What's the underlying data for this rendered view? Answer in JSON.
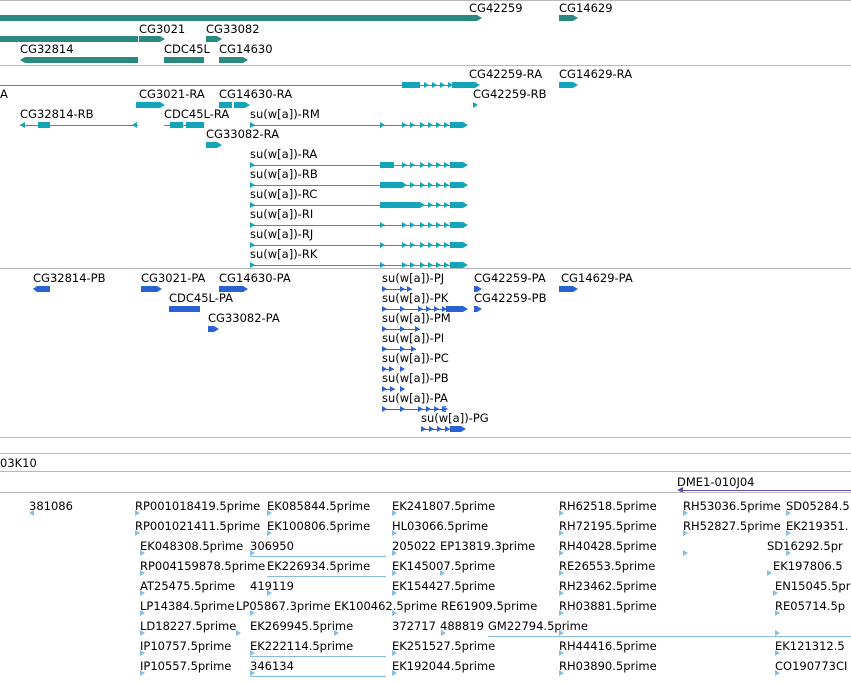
{
  "gene_track": {
    "labels": [
      "CG42259",
      "CG14629",
      "CG3021",
      "CG33082",
      "CG32814",
      "CDC45L",
      "CG14630"
    ]
  },
  "transcript_track": {
    "labels": [
      "CG42259-RA",
      "CG14629-RA",
      "A",
      "CG3021-RA",
      "CG14630-RA",
      "CG42259-RB",
      "CG32814-RB",
      "CDC45L-RA",
      "su(w[a])-RM",
      "CG33082-RA",
      "su(w[a])-RA",
      "su(w[a])-RB",
      "su(w[a])-RC",
      "su(w[a])-RI",
      "su(w[a])-RJ",
      "su(w[a])-RK"
    ]
  },
  "protein_track": {
    "labels": [
      "CG32814-PB",
      "CG3021-PA",
      "CG14630-PA",
      "su(w[a])-PJ",
      "CG42259-PA",
      "CG14629-PA",
      "CDC45L-PA",
      "su(w[a])-PK",
      "CG42259-PB",
      "CG33082-PA",
      "su(w[a])-PM",
      "su(w[a])-PI",
      "su(w[a])-PC",
      "su(w[a])-PB",
      "su(w[a])-PA",
      "su(w[a])-PG"
    ]
  },
  "clone_track": {
    "label": "03K10"
  },
  "est_track": {
    "header_label": "DME1-010J04",
    "labels": [
      "381086",
      "RP001018419.5prime",
      "EK085844.5prime",
      "EK241807.5prime",
      "RH62518.5prime",
      "RH53036.5prime",
      "SD05284.5",
      "RP001021411.5prime",
      "EK100806.5prime",
      "HL03066.5prime",
      "RH72195.5prime",
      "RH52827.5prime",
      "EK219351.",
      "EK048308.5prime",
      "306950",
      "205022",
      "EP13819.3prime",
      "RH40428.5prime",
      "SD16292.5pr",
      "RP004159878.5prime",
      "EK226934.5prime",
      "EK145007.5prime",
      "RE26553.5prime",
      "EK197806.5",
      "AT25475.5prime",
      "419119",
      "EK154427.5prime",
      "RH23462.5prime",
      "EN15045.5pr",
      "LP14384.5prime",
      "LP05867.3prime",
      "EK100462.5prime",
      "RE61909.5prime",
      "RH03881.5prime",
      "RE05714.5p",
      "LD18227.5prime",
      "EK269945.5prime",
      "372717",
      "488819",
      "GM22794.5prime",
      "IP10757.5prime",
      "EK222114.5prime",
      "EK251527.5prime",
      "RH44416.5prime",
      "EK121312.5",
      "IP10557.5prime",
      "346134",
      "EK192044.5prime",
      "RH03890.5prime",
      "CO190773CI"
    ]
  },
  "colors": {
    "gene": "#2a8a80",
    "transcript": "#12a4b8",
    "protein": "#2a62d4",
    "est": "#88bde0",
    "clone": "#6a4aa8",
    "separator": "#b8b8b8"
  }
}
